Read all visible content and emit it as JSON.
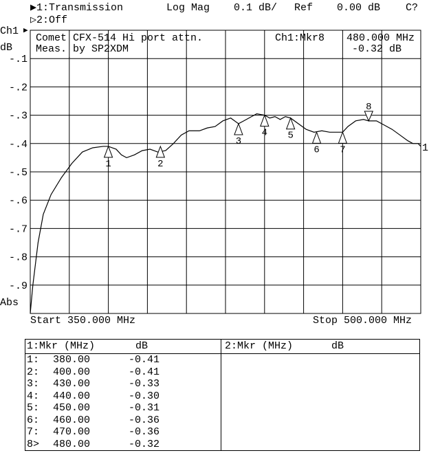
{
  "header": {
    "ch1_line": "▶1:Transmission",
    "format": "Log Mag",
    "scale": "0.1 dB/",
    "ref_label": "Ref",
    "ref_value": "0.00 dB",
    "cal_status": "C?",
    "ch2_line": "▷2:Off"
  },
  "side": {
    "channel": "Ch1",
    "unit": "dB",
    "abs": "Abs"
  },
  "annotation": {
    "title_line1": "Comet CFX-514 Hi port attn.",
    "title_line2": "Meas. by SP2XDM",
    "active_marker": "Ch1:Mkr8",
    "active_freq": "480.000 MHz",
    "active_value": "-0.32 dB"
  },
  "footer": {
    "start": "Start 350.000 MHz",
    "stop": "Stop 500.000 MHz"
  },
  "chart_data": {
    "type": "line",
    "xlabel": "",
    "ylabel": "dB",
    "xlim": [
      350,
      500
    ],
    "ylim": [
      -1.0,
      0.0
    ],
    "grid": true,
    "y_ticks": [
      "-.1",
      "-.2",
      "-.3",
      "-.4",
      "-.5",
      "-.6",
      "-.7",
      "-.8",
      "-.9"
    ],
    "y_tick_values": [
      -0.1,
      -0.2,
      -0.3,
      -0.4,
      -0.5,
      -0.6,
      -0.7,
      -0.8,
      -0.9
    ],
    "reference_label": "1",
    "series": [
      {
        "x": [
          350,
          351,
          353,
          355,
          358,
          362,
          366,
          370,
          374,
          378,
          380,
          383,
          385,
          387,
          390,
          393,
          396,
          399,
          402,
          405,
          408,
          411,
          415,
          418,
          421,
          424,
          427,
          430,
          432,
          435,
          437,
          440,
          442,
          444,
          446,
          448,
          450,
          453,
          456,
          459,
          462,
          465,
          468,
          470,
          472,
          475,
          478,
          480,
          483,
          486,
          489,
          492,
          495,
          497,
          499,
          500
        ],
        "y": [
          -1.0,
          -0.9,
          -0.75,
          -0.65,
          -0.58,
          -0.52,
          -0.47,
          -0.43,
          -0.415,
          -0.41,
          -0.41,
          -0.42,
          -0.44,
          -0.45,
          -0.44,
          -0.425,
          -0.42,
          -0.43,
          -0.425,
          -0.4,
          -0.37,
          -0.355,
          -0.355,
          -0.345,
          -0.34,
          -0.32,
          -0.31,
          -0.33,
          -0.32,
          -0.305,
          -0.295,
          -0.3,
          -0.31,
          -0.305,
          -0.315,
          -0.305,
          -0.31,
          -0.33,
          -0.35,
          -0.36,
          -0.355,
          -0.36,
          -0.36,
          -0.36,
          -0.34,
          -0.32,
          -0.315,
          -0.32,
          -0.32,
          -0.335,
          -0.35,
          -0.37,
          -0.39,
          -0.4,
          -0.4,
          -0.41
        ]
      }
    ],
    "markers": [
      {
        "n": "1",
        "freq": 380,
        "db": -0.41
      },
      {
        "n": "2",
        "freq": 400,
        "db": -0.41
      },
      {
        "n": "3",
        "freq": 430,
        "db": -0.33
      },
      {
        "n": "4",
        "freq": 440,
        "db": -0.3
      },
      {
        "n": "5",
        "freq": 450,
        "db": -0.31
      },
      {
        "n": "6",
        "freq": 460,
        "db": -0.36
      },
      {
        "n": "7",
        "freq": 470,
        "db": -0.36
      },
      {
        "n": "8",
        "freq": 480,
        "db": -0.32,
        "active": true
      }
    ]
  },
  "marker_table": {
    "ch1_header_mkr": "1:Mkr (MHz)",
    "ch1_header_db": "dB",
    "ch2_header_mkr": "2:Mkr (MHz)",
    "ch2_header_db": "dB",
    "rows": [
      {
        "id": "1:",
        "freq": "380.00",
        "db": "-0.41"
      },
      {
        "id": "2:",
        "freq": "400.00",
        "db": "-0.41"
      },
      {
        "id": "3:",
        "freq": "430.00",
        "db": "-0.33"
      },
      {
        "id": "4:",
        "freq": "440.00",
        "db": "-0.30"
      },
      {
        "id": "5:",
        "freq": "450.00",
        "db": "-0.31"
      },
      {
        "id": "6:",
        "freq": "460.00",
        "db": "-0.36"
      },
      {
        "id": "7:",
        "freq": "470.00",
        "db": "-0.36"
      },
      {
        "id": "8>",
        "freq": "480.00",
        "db": "-0.32"
      }
    ]
  }
}
